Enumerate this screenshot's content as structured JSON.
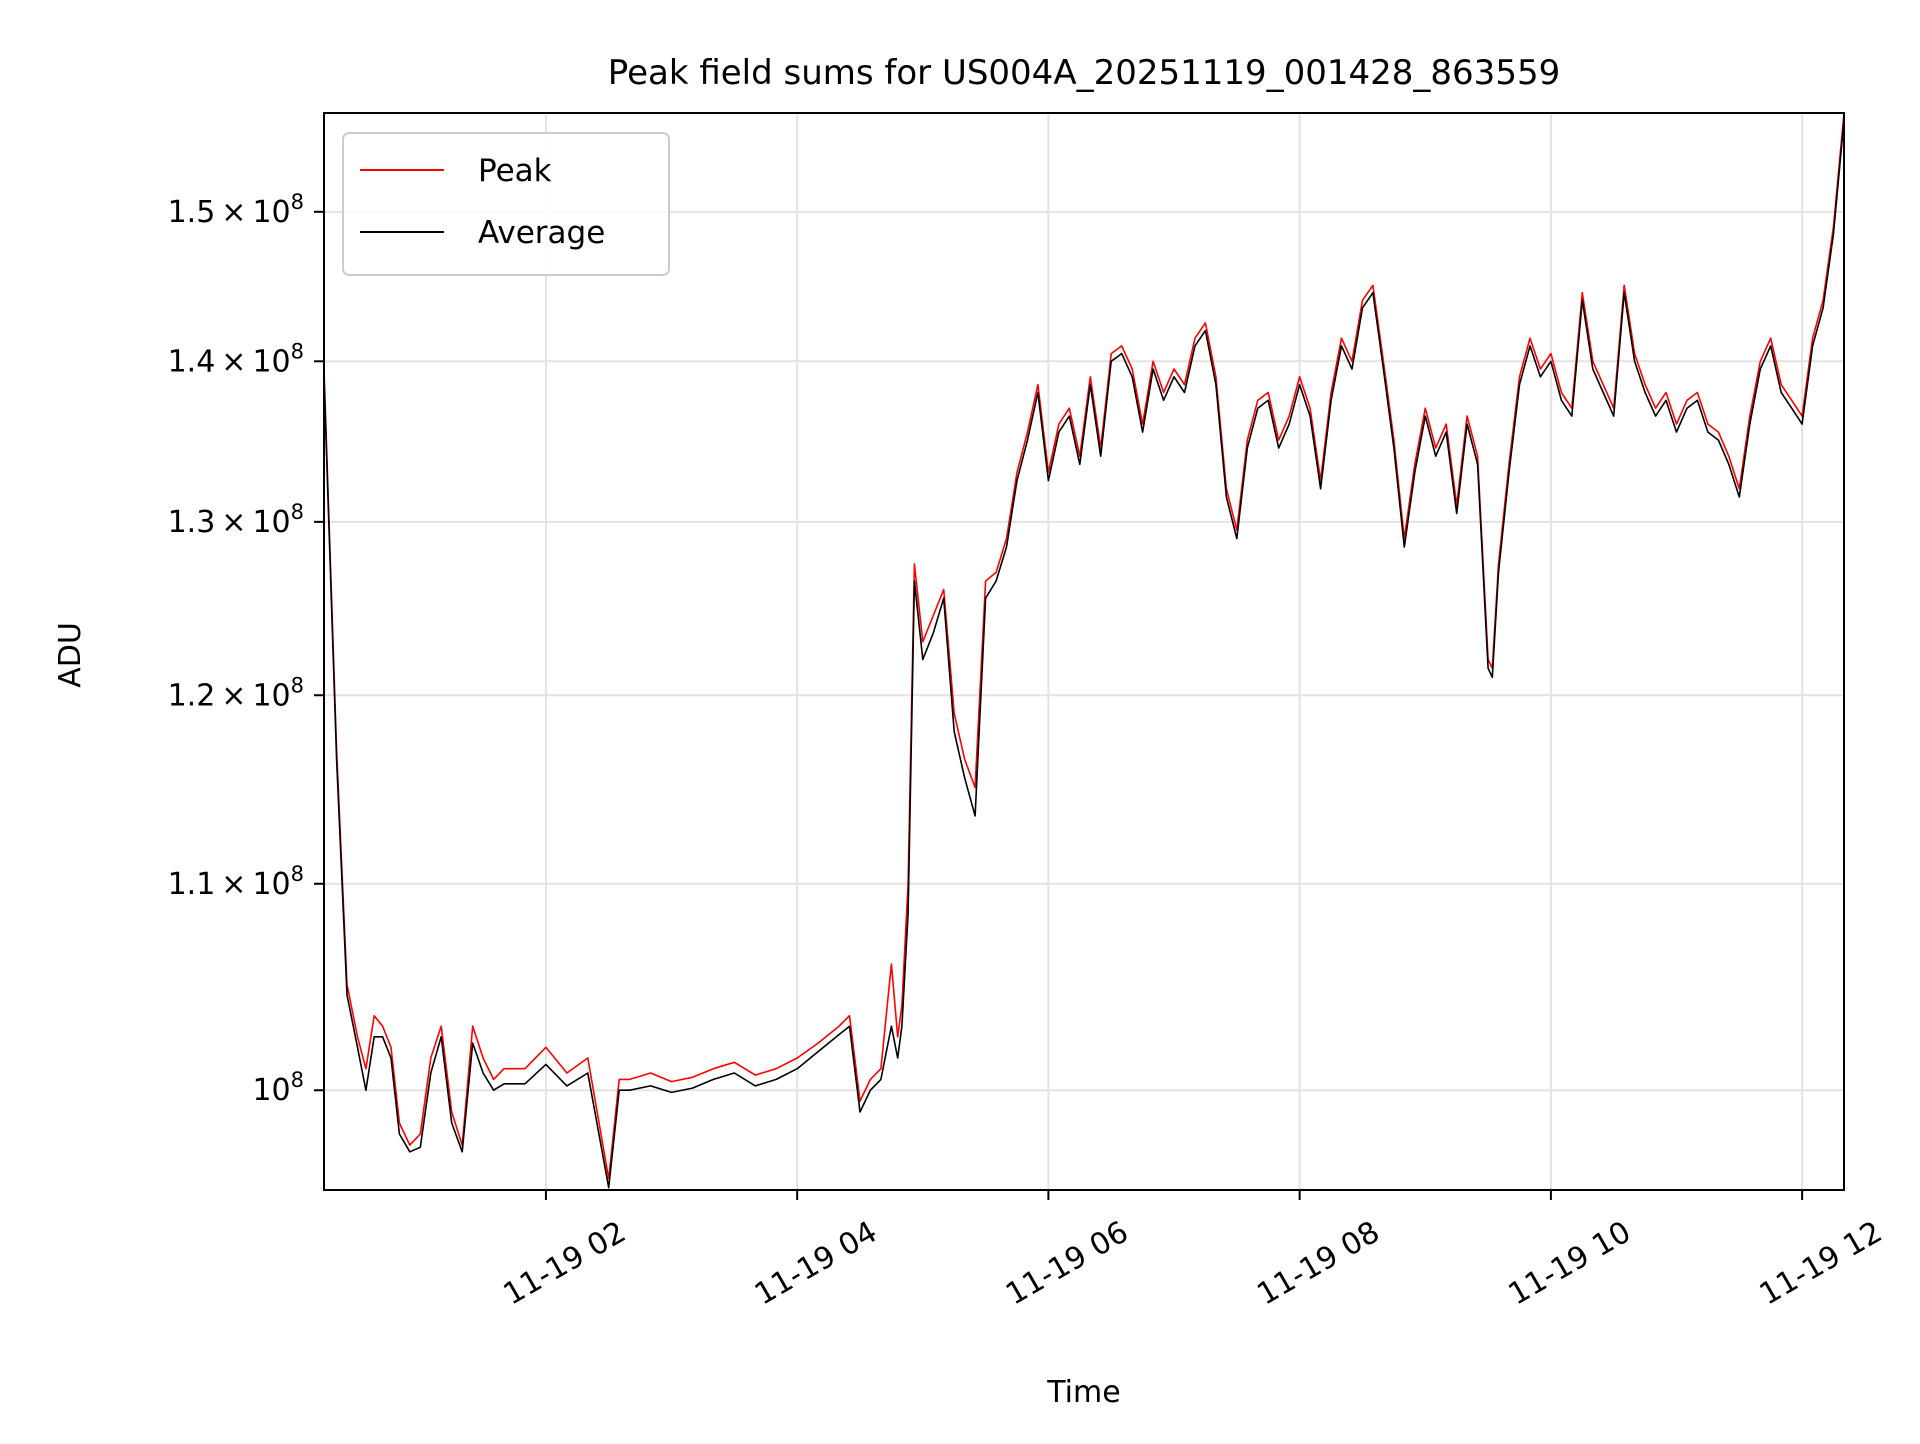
{
  "chart_data": {
    "type": "line",
    "title": "Peak field sums for US004A_20251119_001428_863559",
    "xlabel": "Time",
    "ylabel": "ADU",
    "y_scale": "log",
    "xlim": [
      "2025-11-19T00:14",
      "2025-11-19T12:20"
    ],
    "ylim": [
      95500000,
      157000000
    ],
    "x_ticks": [
      "11-19 02",
      "11-19 04",
      "11-19 06",
      "11-19 08",
      "11-19 10",
      "11-19 12"
    ],
    "x_tick_values": [
      "2025-11-19T02:00",
      "2025-11-19T04:00",
      "2025-11-19T06:00",
      "2025-11-19T08:00",
      "2025-11-19T10:00",
      "2025-11-19T12:00"
    ],
    "y_ticks": [
      {
        "value": 100000000,
        "mantissa": "",
        "base": "10",
        "exp": "8"
      },
      {
        "value": 110000000,
        "mantissa": "1.1",
        "base": "10",
        "exp": "8"
      },
      {
        "value": 120000000,
        "mantissa": "1.2",
        "base": "10",
        "exp": "8"
      },
      {
        "value": 130000000,
        "mantissa": "1.3",
        "base": "10",
        "exp": "8"
      },
      {
        "value": 140000000,
        "mantissa": "1.4",
        "base": "10",
        "exp": "8"
      },
      {
        "value": 150000000,
        "mantissa": "1.5",
        "base": "10",
        "exp": "8"
      }
    ],
    "grid": true,
    "legend_position": "top-left",
    "series": [
      {
        "name": "Peak",
        "color": "#ff0000",
        "x": [
          "00:14",
          "00:20",
          "00:25",
          "00:30",
          "00:34",
          "00:38",
          "00:42",
          "00:46",
          "00:50",
          "00:55",
          "01:00",
          "01:05",
          "01:10",
          "01:15",
          "01:20",
          "01:25",
          "01:30",
          "01:35",
          "01:40",
          "01:50",
          "02:00",
          "02:10",
          "02:20",
          "02:30",
          "02:35",
          "02:40",
          "02:50",
          "03:00",
          "03:10",
          "03:20",
          "03:30",
          "03:40",
          "03:50",
          "04:00",
          "04:10",
          "04:20",
          "04:25",
          "04:30",
          "04:35",
          "04:40",
          "04:45",
          "04:48",
          "04:50",
          "04:53",
          "04:56",
          "05:00",
          "05:05",
          "05:10",
          "05:15",
          "05:20",
          "05:25",
          "05:30",
          "05:35",
          "05:40",
          "05:45",
          "05:50",
          "05:55",
          "06:00",
          "06:05",
          "06:10",
          "06:15",
          "06:20",
          "06:25",
          "06:30",
          "06:35",
          "06:40",
          "06:45",
          "06:50",
          "06:55",
          "07:00",
          "07:05",
          "07:10",
          "07:15",
          "07:20",
          "07:25",
          "07:30",
          "07:35",
          "07:40",
          "07:45",
          "07:50",
          "07:55",
          "08:00",
          "08:05",
          "08:10",
          "08:15",
          "08:20",
          "08:25",
          "08:30",
          "08:35",
          "08:40",
          "08:45",
          "08:50",
          "08:55",
          "09:00",
          "09:05",
          "09:10",
          "09:15",
          "09:20",
          "09:25",
          "09:30",
          "09:32",
          "09:35",
          "09:40",
          "09:45",
          "09:50",
          "09:55",
          "10:00",
          "10:05",
          "10:10",
          "10:15",
          "10:20",
          "10:25",
          "10:30",
          "10:35",
          "10:40",
          "10:45",
          "10:50",
          "10:55",
          "11:00",
          "11:05",
          "11:10",
          "11:15",
          "11:20",
          "11:25",
          "11:30",
          "11:35",
          "11:40",
          "11:45",
          "11:50",
          "11:55",
          "12:00",
          "12:05",
          "12:10",
          "12:15",
          "12:20"
        ],
        "values": [
          139500000,
          117000000,
          105000000,
          102500000,
          101000000,
          103500000,
          103000000,
          102000000,
          98500000,
          97500000,
          98000000,
          101500000,
          103000000,
          99000000,
          97500000,
          103000000,
          101500000,
          100500000,
          101000000,
          101000000,
          102000000,
          100800000,
          101500000,
          96000000,
          100500000,
          100500000,
          100800000,
          100400000,
          100600000,
          101000000,
          101300000,
          100700000,
          101000000,
          101500000,
          102200000,
          103000000,
          103500000,
          99500000,
          100500000,
          101000000,
          106000000,
          102500000,
          104000000,
          110000000,
          127500000,
          123000000,
          124500000,
          126000000,
          119000000,
          116500000,
          115000000,
          126500000,
          127000000,
          129000000,
          133000000,
          135500000,
          138500000,
          133000000,
          136000000,
          137000000,
          134000000,
          139000000,
          134500000,
          140500000,
          141000000,
          139500000,
          136000000,
          140000000,
          138000000,
          139500000,
          138500000,
          141500000,
          142500000,
          139000000,
          132000000,
          129500000,
          135000000,
          137500000,
          138000000,
          135000000,
          136500000,
          139000000,
          137000000,
          132500000,
          138000000,
          141500000,
          140000000,
          144000000,
          145000000,
          140000000,
          135000000,
          129000000,
          133500000,
          137000000,
          134500000,
          136000000,
          131000000,
          136500000,
          134000000,
          122000000,
          121500000,
          127500000,
          133500000,
          139000000,
          141500000,
          139500000,
          140500000,
          138000000,
          137000000,
          144500000,
          140000000,
          138500000,
          137000000,
          145000000,
          140500000,
          138500000,
          137000000,
          138000000,
          136000000,
          137500000,
          138000000,
          136000000,
          135500000,
          134000000,
          132000000,
          136500000,
          140000000,
          141500000,
          138500000,
          137500000,
          136500000,
          141500000,
          144000000,
          149000000,
          157000000
        ]
      },
      {
        "name": "Average",
        "color": "#000000",
        "x": [
          "00:14",
          "00:20",
          "00:25",
          "00:30",
          "00:34",
          "00:38",
          "00:42",
          "00:46",
          "00:50",
          "00:55",
          "01:00",
          "01:05",
          "01:10",
          "01:15",
          "01:20",
          "01:25",
          "01:30",
          "01:35",
          "01:40",
          "01:50",
          "02:00",
          "02:10",
          "02:20",
          "02:30",
          "02:35",
          "02:40",
          "02:50",
          "03:00",
          "03:10",
          "03:20",
          "03:30",
          "03:40",
          "03:50",
          "04:00",
          "04:10",
          "04:20",
          "04:25",
          "04:30",
          "04:35",
          "04:40",
          "04:45",
          "04:48",
          "04:50",
          "04:53",
          "04:56",
          "05:00",
          "05:05",
          "05:10",
          "05:15",
          "05:20",
          "05:25",
          "05:30",
          "05:35",
          "05:40",
          "05:45",
          "05:50",
          "05:55",
          "06:00",
          "06:05",
          "06:10",
          "06:15",
          "06:20",
          "06:25",
          "06:30",
          "06:35",
          "06:40",
          "06:45",
          "06:50",
          "06:55",
          "07:00",
          "07:05",
          "07:10",
          "07:15",
          "07:20",
          "07:25",
          "07:30",
          "07:35",
          "07:40",
          "07:45",
          "07:50",
          "07:55",
          "08:00",
          "08:05",
          "08:10",
          "08:15",
          "08:20",
          "08:25",
          "08:30",
          "08:35",
          "08:40",
          "08:45",
          "08:50",
          "08:55",
          "09:00",
          "09:05",
          "09:10",
          "09:15",
          "09:20",
          "09:25",
          "09:30",
          "09:32",
          "09:35",
          "09:40",
          "09:45",
          "09:50",
          "09:55",
          "10:00",
          "10:05",
          "10:10",
          "10:15",
          "10:20",
          "10:25",
          "10:30",
          "10:35",
          "10:40",
          "10:45",
          "10:50",
          "10:55",
          "11:00",
          "11:05",
          "11:10",
          "11:15",
          "11:20",
          "11:25",
          "11:30",
          "11:35",
          "11:40",
          "11:45",
          "11:50",
          "11:55",
          "12:00",
          "12:05",
          "12:10",
          "12:15",
          "12:20"
        ],
        "values": [
          139000000,
          116500000,
          104500000,
          102000000,
          100000000,
          102500000,
          102500000,
          101500000,
          98000000,
          97200000,
          97400000,
          100800000,
          102500000,
          98500000,
          97200000,
          102200000,
          100800000,
          100000000,
          100300000,
          100300000,
          101200000,
          100200000,
          100800000,
          95600000,
          100000000,
          100000000,
          100200000,
          99900000,
          100100000,
          100500000,
          100800000,
          100200000,
          100500000,
          101000000,
          101800000,
          102600000,
          103000000,
          99000000,
          100000000,
          100500000,
          103000000,
          101500000,
          103000000,
          108500000,
          126500000,
          122000000,
          123500000,
          125500000,
          118000000,
          115500000,
          113500000,
          125500000,
          126500000,
          128500000,
          132500000,
          135000000,
          138000000,
          132500000,
          135500000,
          136500000,
          133500000,
          138500000,
          134000000,
          140000000,
          140500000,
          139000000,
          135500000,
          139500000,
          137500000,
          139000000,
          138000000,
          141000000,
          142000000,
          138500000,
          131500000,
          129000000,
          134500000,
          137000000,
          137500000,
          134500000,
          136000000,
          138500000,
          136500000,
          132000000,
          137500000,
          141000000,
          139500000,
          143500000,
          144500000,
          139500000,
          134500000,
          128500000,
          133000000,
          136500000,
          134000000,
          135500000,
          130500000,
          136000000,
          133500000,
          121500000,
          121000000,
          127000000,
          133000000,
          138500000,
          141000000,
          139000000,
          140000000,
          137500000,
          136500000,
          144000000,
          139500000,
          138000000,
          136500000,
          144500000,
          140000000,
          138000000,
          136500000,
          137500000,
          135500000,
          137000000,
          137500000,
          135500000,
          135000000,
          133500000,
          131500000,
          136000000,
          139500000,
          141000000,
          138000000,
          137000000,
          136000000,
          141000000,
          143500000,
          148500000,
          156500000
        ]
      }
    ]
  }
}
